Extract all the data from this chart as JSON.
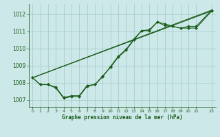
{
  "title": "Graphe pression niveau de la mer (hPa)",
  "background_color": "#cce8e8",
  "grid_color": "#aacccc",
  "line_color": "#1a5c1a",
  "xlim": [
    -0.5,
    23.5
  ],
  "ylim": [
    1006.6,
    1012.6
  ],
  "xticks": [
    0,
    1,
    2,
    3,
    4,
    5,
    6,
    7,
    8,
    9,
    10,
    11,
    12,
    13,
    14,
    15,
    16,
    17,
    18,
    19,
    20,
    21,
    23
  ],
  "yticks": [
    1007,
    1008,
    1009,
    1010,
    1011,
    1012
  ],
  "series1_x": [
    0,
    1,
    2,
    3,
    4,
    5,
    6,
    7,
    8,
    9,
    10,
    11,
    12,
    13,
    14,
    15,
    16,
    17,
    18,
    19,
    20,
    21,
    23
  ],
  "series1_y": [
    1008.3,
    1007.9,
    1007.9,
    1007.7,
    1007.1,
    1007.2,
    1007.2,
    1007.8,
    1007.9,
    1008.4,
    1008.9,
    1009.5,
    1009.9,
    1010.5,
    1011.05,
    1011.1,
    1011.55,
    1011.35,
    1011.3,
    1011.2,
    1011.3,
    1011.3,
    1012.25
  ],
  "series2_x": [
    0,
    1,
    2,
    3,
    4,
    5,
    6,
    7,
    8,
    9,
    10,
    11,
    12,
    13,
    14,
    15,
    16,
    17,
    18,
    19,
    20,
    21,
    23
  ],
  "series2_y": [
    1008.3,
    1007.9,
    1007.9,
    1007.75,
    1007.15,
    1007.25,
    1007.25,
    1007.85,
    1007.9,
    1008.35,
    1008.95,
    1009.55,
    1009.95,
    1010.55,
    1011.05,
    1011.05,
    1011.55,
    1011.45,
    1011.3,
    1011.2,
    1011.2,
    1011.2,
    1012.2
  ],
  "trend1_x": [
    0,
    23
  ],
  "trend1_y": [
    1008.3,
    1012.25
  ],
  "trend2_x": [
    0,
    23
  ],
  "trend2_y": [
    1008.3,
    1012.2
  ]
}
